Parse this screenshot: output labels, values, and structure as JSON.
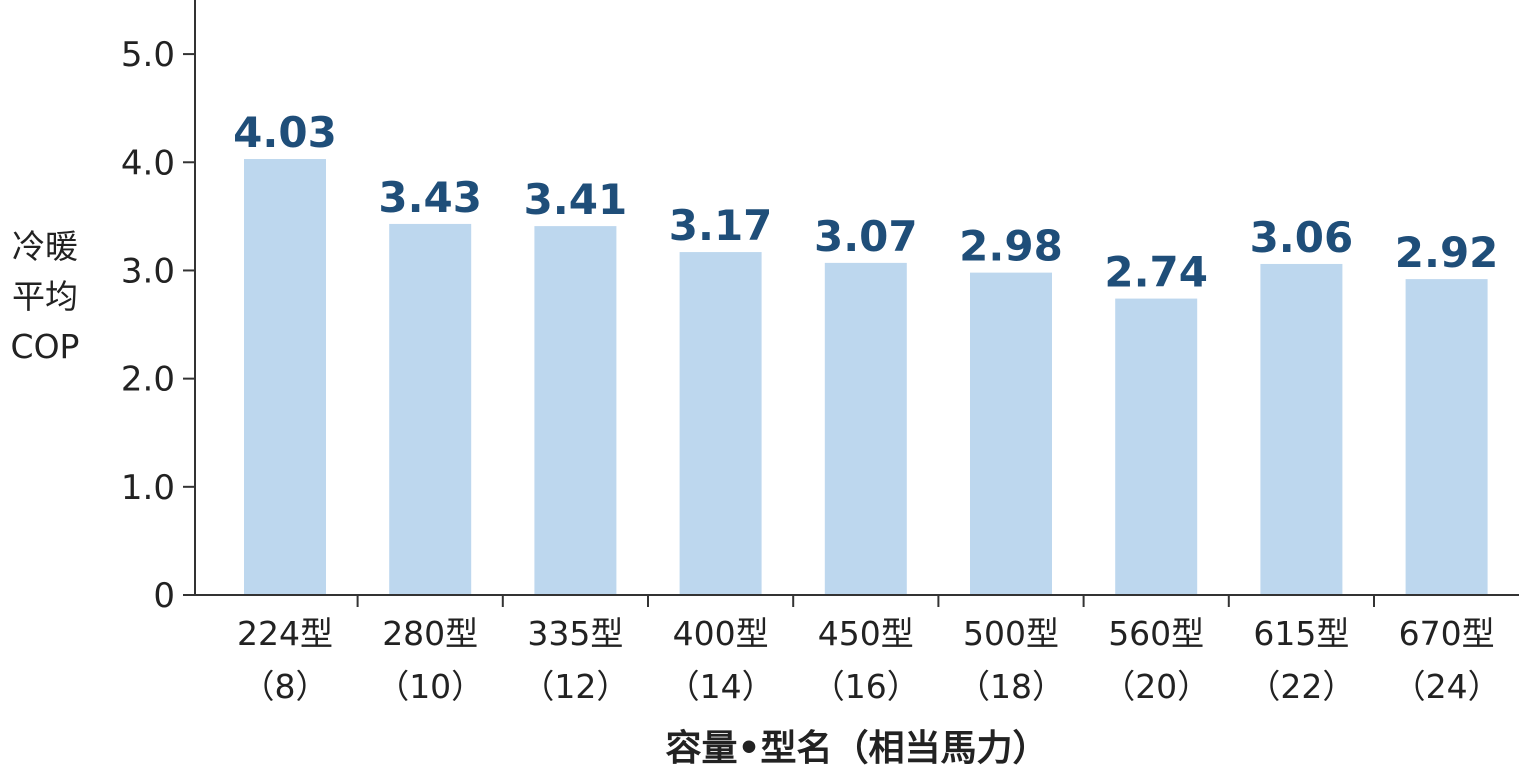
{
  "chart_data": {
    "type": "bar",
    "categories": [
      {
        "name": "224型",
        "hp": "（8）"
      },
      {
        "name": "280型",
        "hp": "（10）"
      },
      {
        "name": "335型",
        "hp": "（12）"
      },
      {
        "name": "400型",
        "hp": "（14）"
      },
      {
        "name": "450型",
        "hp": "（16）"
      },
      {
        "name": "500型",
        "hp": "（18）"
      },
      {
        "name": "560型",
        "hp": "（20）"
      },
      {
        "name": "615型",
        "hp": "（22）"
      },
      {
        "name": "670型",
        "hp": "（24）"
      }
    ],
    "values": [
      4.03,
      3.43,
      3.41,
      3.17,
      3.07,
      2.98,
      2.74,
      3.06,
      2.92
    ],
    "value_labels": [
      "4.03",
      "3.43",
      "3.41",
      "3.17",
      "3.07",
      "2.98",
      "2.74",
      "3.06",
      "2.92"
    ],
    "ylabel_lines": [
      "冷暖",
      "平均",
      "COP"
    ],
    "xlabel": "容量•型名（相当馬力）",
    "ylim": [
      0,
      5.5
    ],
    "yticks": [
      0,
      1,
      2,
      3,
      4,
      5
    ],
    "ytick_labels": [
      "0",
      "1.0",
      "2.0",
      "3.0",
      "4.0",
      "5.0"
    ],
    "grid": false,
    "colors": {
      "bar": "#bdd7ee",
      "value_label": "#1f4e79",
      "axis": "#333333"
    }
  }
}
